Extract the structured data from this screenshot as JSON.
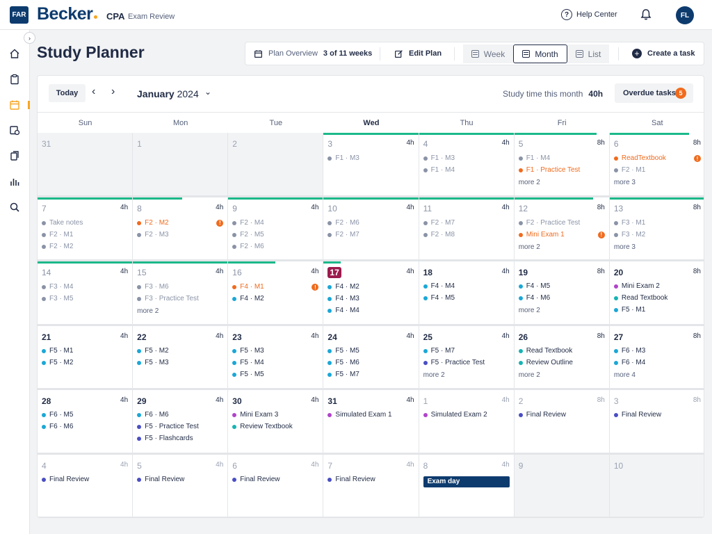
{
  "header": {
    "section_badge": "FAR",
    "brand": "Becker",
    "product": "CPA",
    "product_sub": "Exam Review",
    "help": "Help Center",
    "avatar": "FL"
  },
  "page": {
    "title": "Study Planner"
  },
  "toolbar": {
    "plan_overview_label": "Plan Overview",
    "plan_overview_value": "3 of 11 weeks",
    "edit_plan": "Edit Plan",
    "views": [
      "Week",
      "Month",
      "List"
    ],
    "active_view": "Month",
    "create_task": "Create a task"
  },
  "calendar": {
    "today_label": "Today",
    "month": "January",
    "year": "2024",
    "study_time_label": "Study time this month",
    "study_time_value": "40h",
    "overdue_label": "Overdue tasks",
    "overdue_count": "5",
    "weekdays": [
      "Sun",
      "Mon",
      "Tue",
      "Wed",
      "Thu",
      "Fri",
      "Sat"
    ],
    "current_weekday": "Wed",
    "colors": {
      "completed": "#8a93a6",
      "overdue": "#f06b1d",
      "cyan": "#1aa7d6",
      "purple": "#b044c9",
      "indigo": "#4a4ec2",
      "teal": "#17b3b3",
      "progress": "#1bb98a",
      "today": "#9b1b4e",
      "exam": "#0d3b6e"
    },
    "days": [
      {
        "day": "31",
        "out": true,
        "tasks": []
      },
      {
        "day": "1",
        "out": true,
        "tasks": []
      },
      {
        "day": "2",
        "out": true,
        "tasks": []
      },
      {
        "day": "3",
        "hours": "4h",
        "past": true,
        "progress": 1,
        "tasks": [
          {
            "t": "F1 · M3",
            "s": "done"
          }
        ]
      },
      {
        "day": "4",
        "hours": "4h",
        "past": true,
        "progress": 1,
        "tasks": [
          {
            "t": "F1 · M3",
            "s": "done"
          },
          {
            "t": "F1 · M4",
            "s": "done"
          }
        ]
      },
      {
        "day": "5",
        "hours": "8h",
        "past": true,
        "progress": 0.87,
        "tasks": [
          {
            "t": "F1 · M4",
            "s": "done"
          },
          {
            "t": "F1 · Practice Test",
            "s": "overdue"
          }
        ],
        "more": "more 2"
      },
      {
        "day": "6",
        "hours": "8h",
        "past": true,
        "progress": 0.83,
        "tasks": [
          {
            "t": "ReadTextbook",
            "s": "overdue",
            "warn": true
          },
          {
            "t": "F2 · M1",
            "s": "done"
          }
        ],
        "more": "more 3"
      },
      {
        "day": "7",
        "hours": "4h",
        "past": true,
        "progress": 1,
        "tasks": [
          {
            "t": "Take notes",
            "s": "done"
          },
          {
            "t": "F2 · M1",
            "s": "done"
          },
          {
            "t": "F2 · M2",
            "s": "done"
          }
        ]
      },
      {
        "day": "8",
        "hours": "4h",
        "past": true,
        "progress": 0.52,
        "tasks": [
          {
            "t": "F2 · M2",
            "s": "overdue",
            "warn": true
          },
          {
            "t": "F2 · M3",
            "s": "done"
          }
        ]
      },
      {
        "day": "9",
        "hours": "4h",
        "past": true,
        "progress": 1,
        "tasks": [
          {
            "t": "F2 · M4",
            "s": "done"
          },
          {
            "t": "F2 · M5",
            "s": "done"
          },
          {
            "t": "F2 · M6",
            "s": "done"
          }
        ]
      },
      {
        "day": "10",
        "hours": "4h",
        "past": true,
        "progress": 1,
        "tasks": [
          {
            "t": "F2 · M6",
            "s": "done"
          },
          {
            "t": "F2 · M7",
            "s": "done"
          }
        ]
      },
      {
        "day": "11",
        "hours": "4h",
        "past": true,
        "progress": 1,
        "tasks": [
          {
            "t": "F2 · M7",
            "s": "done"
          },
          {
            "t": "F2 · M8",
            "s": "done"
          }
        ]
      },
      {
        "day": "12",
        "hours": "8h",
        "past": true,
        "progress": 0.83,
        "tasks": [
          {
            "t": "F2 · Practice Test",
            "s": "done"
          },
          {
            "t": "Mini Exam 1",
            "s": "overdue",
            "warn": true
          }
        ],
        "more": "more 2"
      },
      {
        "day": "13",
        "hours": "8h",
        "past": true,
        "progress": 1,
        "tasks": [
          {
            "t": "F3 · M1",
            "s": "done"
          },
          {
            "t": "F3 · M2",
            "s": "done"
          }
        ],
        "more": "more 3"
      },
      {
        "day": "14",
        "hours": "4h",
        "past": true,
        "progress": 1,
        "tasks": [
          {
            "t": "F3 · M4",
            "s": "done"
          },
          {
            "t": "F3 · M5",
            "s": "done"
          }
        ]
      },
      {
        "day": "15",
        "hours": "4h",
        "past": true,
        "progress": 1,
        "tasks": [
          {
            "t": "F3 · M6",
            "s": "done"
          },
          {
            "t": "F3 · Practice Test",
            "s": "done"
          }
        ],
        "more": "more 2"
      },
      {
        "day": "16",
        "hours": "4h",
        "past": true,
        "progress": 0.5,
        "tasks": [
          {
            "t": "F4 · M1",
            "s": "overdue",
            "warn": true
          },
          {
            "t": "F4 · M2",
            "s": "cyan"
          }
        ]
      },
      {
        "day": "17",
        "hours": "4h",
        "today": true,
        "progress": 0.18,
        "tasks": [
          {
            "t": "F4 · M2",
            "s": "cyan"
          },
          {
            "t": "F4 · M3",
            "s": "cyan"
          },
          {
            "t": "F4 · M4",
            "s": "cyan"
          }
        ]
      },
      {
        "day": "18",
        "hours": "4h",
        "tasks": [
          {
            "t": "F4 · M4",
            "s": "cyan"
          },
          {
            "t": "F4 · M5",
            "s": "cyan"
          }
        ]
      },
      {
        "day": "19",
        "hours": "8h",
        "tasks": [
          {
            "t": "F4 · M5",
            "s": "cyan"
          },
          {
            "t": "F4 · M6",
            "s": "cyan"
          }
        ],
        "more": "more 2"
      },
      {
        "day": "20",
        "hours": "8h",
        "tasks": [
          {
            "t": "Mini Exam 2",
            "s": "purple"
          },
          {
            "t": "Read Textbook",
            "s": "teal"
          },
          {
            "t": "F5 · M1",
            "s": "cyan"
          }
        ]
      },
      {
        "day": "21",
        "hours": "4h",
        "tasks": [
          {
            "t": "F5 · M1",
            "s": "cyan"
          },
          {
            "t": "F5 · M2",
            "s": "cyan"
          }
        ]
      },
      {
        "day": "22",
        "hours": "4h",
        "tasks": [
          {
            "t": "F5 · M2",
            "s": "cyan"
          },
          {
            "t": "F5 · M3",
            "s": "cyan"
          }
        ]
      },
      {
        "day": "23",
        "hours": "4h",
        "tasks": [
          {
            "t": "F5 · M3",
            "s": "cyan"
          },
          {
            "t": "F5 · M4",
            "s": "cyan"
          },
          {
            "t": "F5 · M5",
            "s": "cyan"
          }
        ]
      },
      {
        "day": "24",
        "hours": "4h",
        "tasks": [
          {
            "t": "F5 · M5",
            "s": "cyan"
          },
          {
            "t": "F5 · M6",
            "s": "cyan"
          },
          {
            "t": "F5 · M7",
            "s": "cyan"
          }
        ]
      },
      {
        "day": "25",
        "hours": "4h",
        "tasks": [
          {
            "t": "F5 · M7",
            "s": "cyan"
          },
          {
            "t": "F5 · Practice Test",
            "s": "indigo"
          }
        ],
        "more": "more 2"
      },
      {
        "day": "26",
        "hours": "8h",
        "tasks": [
          {
            "t": "Read Textbook",
            "s": "teal"
          },
          {
            "t": "Review Outline",
            "s": "teal"
          }
        ],
        "more": "more 2"
      },
      {
        "day": "27",
        "hours": "8h",
        "tasks": [
          {
            "t": "F6 · M3",
            "s": "cyan"
          },
          {
            "t": "F6 · M4",
            "s": "cyan"
          }
        ],
        "more": "more 4"
      },
      {
        "day": "28",
        "hours": "4h",
        "tasks": [
          {
            "t": "F6 · M5",
            "s": "cyan"
          },
          {
            "t": "F6 · M6",
            "s": "cyan"
          }
        ]
      },
      {
        "day": "29",
        "hours": "4h",
        "tasks": [
          {
            "t": "F6 · M6",
            "s": "cyan"
          },
          {
            "t": "F5 · Practice Test",
            "s": "indigo"
          },
          {
            "t": "F5 · Flashcards",
            "s": "indigo"
          }
        ]
      },
      {
        "day": "30",
        "hours": "4h",
        "tasks": [
          {
            "t": "Mini Exam 3",
            "s": "purple"
          },
          {
            "t": "Review Textbook",
            "s": "teal"
          }
        ]
      },
      {
        "day": "31",
        "hours": "4h",
        "tasks": [
          {
            "t": "Simulated Exam 1",
            "s": "purple"
          }
        ]
      },
      {
        "day": "1",
        "hours": "4h",
        "next": true,
        "tasks": [
          {
            "t": "Simulated Exam 2",
            "s": "purple"
          }
        ]
      },
      {
        "day": "2",
        "hours": "8h",
        "next": true,
        "tasks": [
          {
            "t": "Final Review",
            "s": "indigo"
          }
        ]
      },
      {
        "day": "3",
        "hours": "8h",
        "next": true,
        "tasks": [
          {
            "t": "Final Review",
            "s": "indigo"
          }
        ]
      },
      {
        "day": "4",
        "hours": "4h",
        "next": true,
        "tasks": [
          {
            "t": "Final Review",
            "s": "indigo"
          }
        ]
      },
      {
        "day": "5",
        "hours": "4h",
        "next": true,
        "tasks": [
          {
            "t": "Final Review",
            "s": "indigo"
          }
        ]
      },
      {
        "day": "6",
        "hours": "4h",
        "next": true,
        "tasks": [
          {
            "t": "Final Review",
            "s": "indigo"
          }
        ]
      },
      {
        "day": "7",
        "hours": "4h",
        "next": true,
        "tasks": [
          {
            "t": "Final Review",
            "s": "indigo"
          }
        ]
      },
      {
        "day": "8",
        "hours": "4h",
        "next": true,
        "exam": "Exam day",
        "tasks": []
      },
      {
        "day": "9",
        "out": true,
        "tasks": []
      },
      {
        "day": "10",
        "out": true,
        "tasks": []
      }
    ]
  }
}
